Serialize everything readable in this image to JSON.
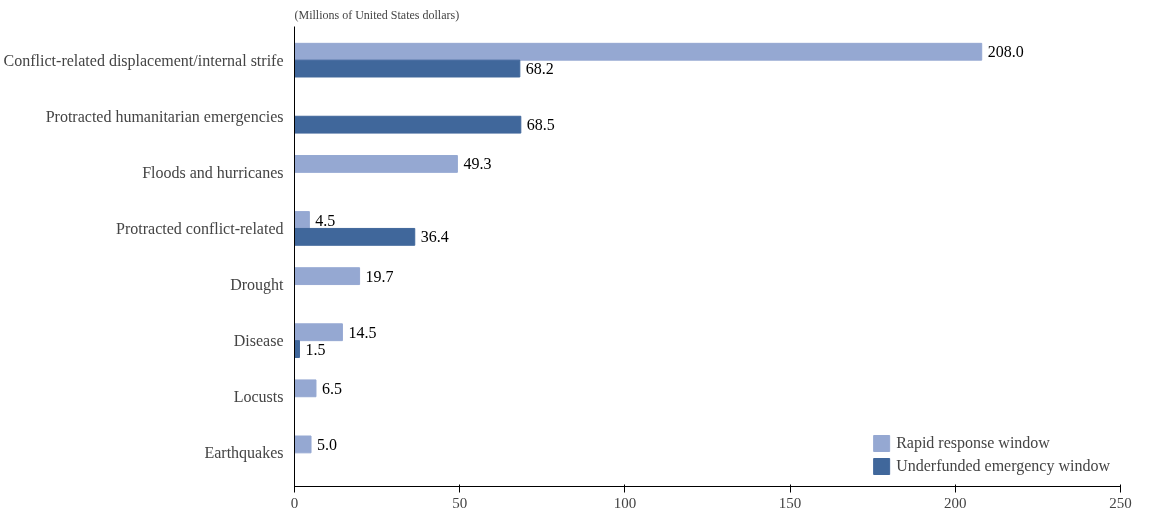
{
  "chart_data": {
    "type": "bar",
    "orientation": "horizontal",
    "subtitle": "(Millions of United States dollars)",
    "categories": [
      "Conflict-related displacement/internal strife",
      "Protracted humanitarian emergencies",
      "Floods and hurricanes",
      "Protracted conflict-related",
      "Drought",
      "Disease",
      "Locusts",
      "Earthquakes"
    ],
    "series": [
      {
        "name": "Rapid response window",
        "color": "#95a8d2",
        "values": [
          208.0,
          null,
          49.3,
          4.5,
          19.7,
          14.5,
          6.5,
          5.0
        ],
        "value_labels": [
          "208.0",
          null,
          "49.3",
          "4.5",
          "19.7",
          "14.5",
          "6.5",
          "5.0"
        ]
      },
      {
        "name": "Underfunded emergency window",
        "color": "#40679b",
        "values": [
          68.2,
          68.5,
          null,
          36.4,
          null,
          1.5,
          null,
          null
        ],
        "value_labels": [
          "68.2",
          "68.5",
          null,
          "36.4",
          null,
          "1.5",
          null,
          null
        ]
      }
    ],
    "xlim": [
      0,
      250
    ],
    "xticks": [
      0,
      50,
      100,
      150,
      200,
      250
    ],
    "legend": "bottom right",
    "grid": false
  }
}
